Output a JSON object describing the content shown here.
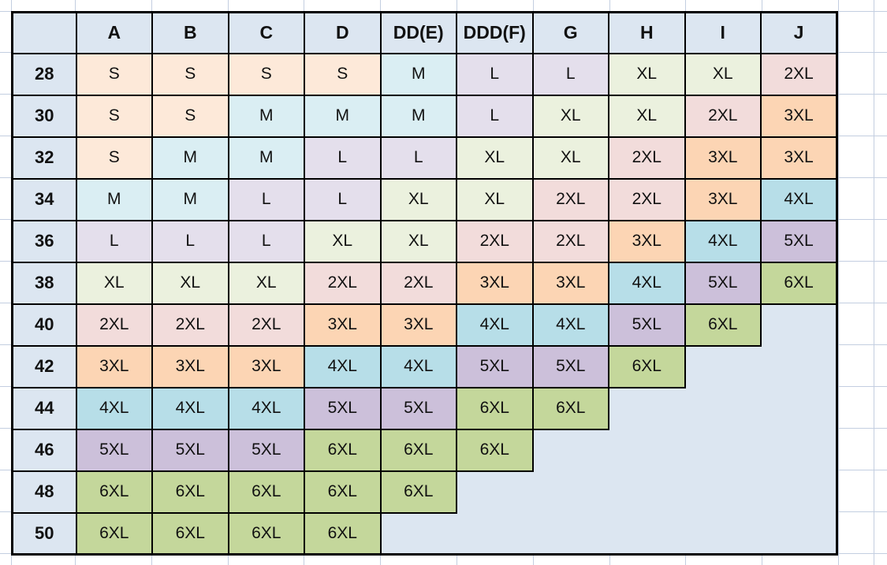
{
  "chart_data": {
    "type": "table",
    "corner_label": "",
    "columns": [
      "A",
      "B",
      "C",
      "D",
      "DD(E)",
      "DDD(F)",
      "G",
      "H",
      "I",
      "J"
    ],
    "rows": [
      {
        "label": "28",
        "cells": [
          "S",
          "S",
          "S",
          "S",
          "M",
          "L",
          "L",
          "XL",
          "XL",
          "2XL"
        ]
      },
      {
        "label": "30",
        "cells": [
          "S",
          "S",
          "M",
          "M",
          "M",
          "L",
          "XL",
          "XL",
          "2XL",
          "3XL"
        ]
      },
      {
        "label": "32",
        "cells": [
          "S",
          "M",
          "M",
          "L",
          "L",
          "XL",
          "XL",
          "2XL",
          "3XL",
          "3XL"
        ]
      },
      {
        "label": "34",
        "cells": [
          "M",
          "M",
          "L",
          "L",
          "XL",
          "XL",
          "2XL",
          "2XL",
          "3XL",
          "4XL"
        ]
      },
      {
        "label": "36",
        "cells": [
          "L",
          "L",
          "L",
          "XL",
          "XL",
          "2XL",
          "2XL",
          "3XL",
          "4XL",
          "5XL"
        ]
      },
      {
        "label": "38",
        "cells": [
          "XL",
          "XL",
          "XL",
          "2XL",
          "2XL",
          "3XL",
          "3XL",
          "4XL",
          "5XL",
          "6XL"
        ]
      },
      {
        "label": "40",
        "cells": [
          "2XL",
          "2XL",
          "2XL",
          "3XL",
          "3XL",
          "4XL",
          "4XL",
          "5XL",
          "6XL",
          ""
        ]
      },
      {
        "label": "42",
        "cells": [
          "3XL",
          "3XL",
          "3XL",
          "4XL",
          "4XL",
          "5XL",
          "5XL",
          "6XL",
          "",
          ""
        ]
      },
      {
        "label": "44",
        "cells": [
          "4XL",
          "4XL",
          "4XL",
          "5XL",
          "5XL",
          "6XL",
          "6XL",
          "",
          "",
          ""
        ]
      },
      {
        "label": "46",
        "cells": [
          "5XL",
          "5XL",
          "5XL",
          "6XL",
          "6XL",
          "6XL",
          "",
          "",
          "",
          ""
        ]
      },
      {
        "label": "48",
        "cells": [
          "6XL",
          "6XL",
          "6XL",
          "6XL",
          "6XL",
          "",
          "",
          "",
          "",
          ""
        ]
      },
      {
        "label": "50",
        "cells": [
          "6XL",
          "6XL",
          "6XL",
          "6XL",
          "",
          "",
          "",
          "",
          "",
          ""
        ]
      }
    ],
    "size_colors": {
      "S": "#FDE9D9",
      "M": "#DAEEF3",
      "L": "#E4DFEC",
      "XL": "#EBF1DE",
      "2XL": "#F2DCDB",
      "3XL": "#FCD5B4",
      "4XL": "#B7DEE8",
      "5XL": "#CCC0DA",
      "6XL": "#C4D79B"
    },
    "colors": {
      "header_bg": "#DCE6F1",
      "row_label_bg": "#DCE6F1",
      "empty_region_bg": "#DCE6F1",
      "cell_border": "#000000",
      "text": "#111111",
      "sheet_bg": "#FFFFFF",
      "gridline": "#C3CEE0"
    },
    "layout_hints": {
      "grid": "on",
      "legend_position": "none",
      "xlabel": "",
      "ylabel": ""
    }
  }
}
